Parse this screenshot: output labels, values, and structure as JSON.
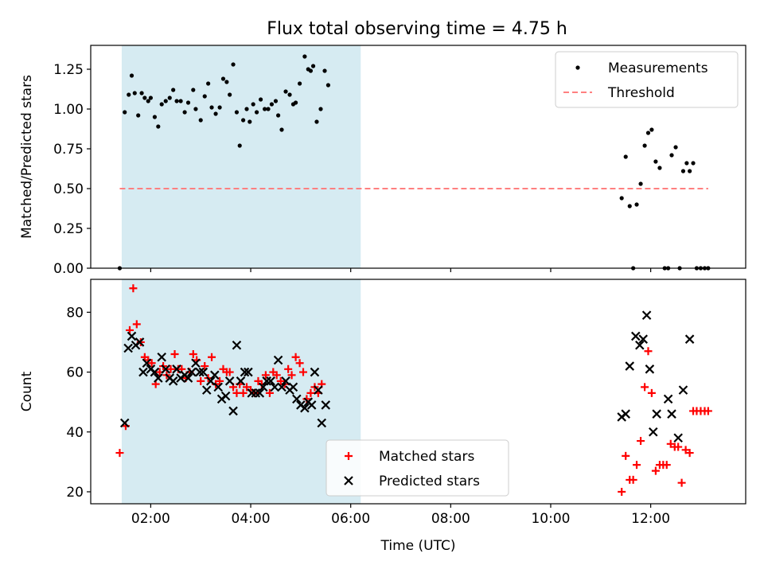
{
  "figure": {
    "title": "Flux total observing time = 4.75 h"
  },
  "chart_data": [
    {
      "type": "scatter",
      "panel": "top",
      "title": "Flux total observing time = 4.75 h",
      "xlabel": "",
      "ylabel": "Matched/Predicted stars",
      "xlim": [
        0.8,
        13.9
      ],
      "ylim": [
        0,
        1.4
      ],
      "yticks": [
        0.0,
        0.25,
        0.5,
        0.75,
        1.0,
        1.25
      ],
      "ytick_labels": [
        "0.00",
        "0.25",
        "0.50",
        "0.75",
        "1.00",
        "1.25"
      ],
      "xticks": [
        2,
        4,
        6,
        8,
        10,
        12
      ],
      "shaded_span": {
        "x": [
          1.42,
          6.2
        ],
        "color": "#add8e6"
      },
      "legend": {
        "position": "top-right"
      },
      "series": [
        {
          "name": "Measurements",
          "kind": "dot",
          "color": "#000000",
          "points": [
            [
              1.38,
              0.0
            ],
            [
              1.48,
              0.98
            ],
            [
              1.56,
              1.09
            ],
            [
              1.62,
              1.21
            ],
            [
              1.68,
              1.1
            ],
            [
              1.75,
              0.96
            ],
            [
              1.82,
              1.1
            ],
            [
              1.88,
              1.07
            ],
            [
              1.95,
              1.05
            ],
            [
              2.0,
              1.07
            ],
            [
              2.08,
              0.95
            ],
            [
              2.15,
              0.89
            ],
            [
              2.22,
              1.03
            ],
            [
              2.3,
              1.05
            ],
            [
              2.38,
              1.07
            ],
            [
              2.45,
              1.12
            ],
            [
              2.52,
              1.05
            ],
            [
              2.6,
              1.05
            ],
            [
              2.68,
              0.98
            ],
            [
              2.75,
              1.04
            ],
            [
              2.85,
              1.12
            ],
            [
              2.9,
              1.0
            ],
            [
              3.0,
              0.93
            ],
            [
              3.08,
              1.08
            ],
            [
              3.15,
              1.16
            ],
            [
              3.22,
              1.01
            ],
            [
              3.3,
              0.97
            ],
            [
              3.38,
              1.01
            ],
            [
              3.45,
              1.19
            ],
            [
              3.52,
              1.17
            ],
            [
              3.58,
              1.09
            ],
            [
              3.65,
              1.28
            ],
            [
              3.72,
              0.98
            ],
            [
              3.78,
              0.77
            ],
            [
              3.85,
              0.93
            ],
            [
              3.92,
              1.0
            ],
            [
              3.98,
              0.92
            ],
            [
              4.05,
              1.03
            ],
            [
              4.12,
              0.98
            ],
            [
              4.2,
              1.06
            ],
            [
              4.28,
              1.0
            ],
            [
              4.35,
              1.0
            ],
            [
              4.42,
              1.03
            ],
            [
              4.5,
              1.05
            ],
            [
              4.55,
              0.96
            ],
            [
              4.62,
              0.87
            ],
            [
              4.7,
              1.11
            ],
            [
              4.78,
              1.09
            ],
            [
              4.85,
              1.03
            ],
            [
              4.9,
              1.04
            ],
            [
              4.98,
              1.16
            ],
            [
              5.08,
              1.33
            ],
            [
              5.15,
              1.25
            ],
            [
              5.2,
              1.24
            ],
            [
              5.25,
              1.27
            ],
            [
              5.32,
              0.92
            ],
            [
              5.4,
              1.0
            ],
            [
              5.48,
              1.24
            ],
            [
              5.55,
              1.15
            ],
            [
              11.42,
              0.44
            ],
            [
              11.5,
              0.7
            ],
            [
              11.58,
              0.39
            ],
            [
              11.65,
              0.0
            ],
            [
              11.72,
              0.4
            ],
            [
              11.8,
              0.53
            ],
            [
              11.88,
              0.77
            ],
            [
              11.95,
              0.85
            ],
            [
              12.02,
              0.87
            ],
            [
              12.1,
              0.67
            ],
            [
              12.18,
              0.63
            ],
            [
              12.28,
              0.0
            ],
            [
              12.35,
              0.0
            ],
            [
              12.42,
              0.71
            ],
            [
              12.5,
              0.76
            ],
            [
              12.58,
              0.0
            ],
            [
              12.65,
              0.61
            ],
            [
              12.72,
              0.66
            ],
            [
              12.78,
              0.61
            ],
            [
              12.85,
              0.66
            ],
            [
              12.92,
              0.0
            ],
            [
              13.0,
              0.0
            ],
            [
              13.08,
              0.0
            ],
            [
              13.15,
              0.0
            ]
          ]
        },
        {
          "name": "Threshold",
          "kind": "dashed-line",
          "color": "#ff8080",
          "points": [
            [
              1.38,
              0.5
            ],
            [
              13.15,
              0.5
            ]
          ]
        }
      ]
    },
    {
      "type": "scatter",
      "panel": "bottom",
      "xlabel": "Time (UTC)",
      "ylabel": "Count",
      "xlim": [
        0.8,
        13.9
      ],
      "ylim": [
        16,
        91
      ],
      "yticks": [
        20,
        40,
        60,
        80
      ],
      "ytick_labels": [
        "20",
        "40",
        "60",
        "80"
      ],
      "xticks": [
        2,
        4,
        6,
        8,
        10,
        12
      ],
      "xtick_labels": [
        "02:00",
        "04:00",
        "06:00",
        "08:00",
        "10:00",
        "12:00"
      ],
      "shaded_span": {
        "x": [
          1.42,
          6.2
        ],
        "color": "#add8e6"
      },
      "legend": {
        "position": "bottom-center"
      },
      "series": [
        {
          "name": "Matched stars",
          "kind": "plus",
          "color": "#ff0000",
          "points": [
            [
              1.38,
              33
            ],
            [
              1.5,
              42
            ],
            [
              1.58,
              74
            ],
            [
              1.65,
              88
            ],
            [
              1.72,
              76
            ],
            [
              1.8,
              70
            ],
            [
              1.88,
              65
            ],
            [
              1.95,
              64
            ],
            [
              2.02,
              63
            ],
            [
              2.1,
              56
            ],
            [
              2.18,
              60
            ],
            [
              2.25,
              62
            ],
            [
              2.32,
              59
            ],
            [
              2.4,
              61
            ],
            [
              2.48,
              66
            ],
            [
              2.55,
              61
            ],
            [
              2.62,
              61
            ],
            [
              2.7,
              58
            ],
            [
              2.78,
              60
            ],
            [
              2.85,
              66
            ],
            [
              2.92,
              64
            ],
            [
              3.0,
              57
            ],
            [
              3.08,
              62
            ],
            [
              3.15,
              58
            ],
            [
              3.22,
              65
            ],
            [
              3.3,
              56
            ],
            [
              3.38,
              57
            ],
            [
              3.45,
              61
            ],
            [
              3.52,
              60
            ],
            [
              3.58,
              60
            ],
            [
              3.65,
              55
            ],
            [
              3.72,
              53
            ],
            [
              3.78,
              56
            ],
            [
              3.85,
              53
            ],
            [
              3.92,
              55
            ],
            [
              4.0,
              54
            ],
            [
              4.08,
              53
            ],
            [
              4.15,
              57
            ],
            [
              4.22,
              56
            ],
            [
              4.3,
              59
            ],
            [
              4.38,
              53
            ],
            [
              4.45,
              60
            ],
            [
              4.52,
              59
            ],
            [
              4.6,
              57
            ],
            [
              4.68,
              56
            ],
            [
              4.75,
              61
            ],
            [
              4.82,
              59
            ],
            [
              4.9,
              65
            ],
            [
              4.98,
              63
            ],
            [
              5.05,
              60
            ],
            [
              5.12,
              51
            ],
            [
              5.2,
              53
            ],
            [
              5.28,
              55
            ],
            [
              5.35,
              53
            ],
            [
              5.42,
              56
            ],
            [
              11.42,
              20
            ],
            [
              11.5,
              32
            ],
            [
              11.58,
              24
            ],
            [
              11.65,
              24
            ],
            [
              11.72,
              29
            ],
            [
              11.8,
              37
            ],
            [
              11.88,
              55
            ],
            [
              11.95,
              67
            ],
            [
              12.02,
              53
            ],
            [
              12.1,
              27
            ],
            [
              12.18,
              29
            ],
            [
              12.25,
              29
            ],
            [
              12.32,
              29
            ],
            [
              12.4,
              36
            ],
            [
              12.48,
              35
            ],
            [
              12.55,
              35
            ],
            [
              12.62,
              23
            ],
            [
              12.7,
              34
            ],
            [
              12.78,
              33
            ],
            [
              12.85,
              47
            ],
            [
              12.92,
              47
            ],
            [
              13.0,
              47
            ],
            [
              13.08,
              47
            ],
            [
              13.15,
              47
            ]
          ]
        },
        {
          "name": "Predicted stars",
          "kind": "x",
          "color": "#000000",
          "points": [
            [
              1.48,
              43
            ],
            [
              1.55,
              68
            ],
            [
              1.62,
              72
            ],
            [
              1.7,
              69
            ],
            [
              1.78,
              70
            ],
            [
              1.85,
              60
            ],
            [
              1.92,
              63
            ],
            [
              2.0,
              61
            ],
            [
              2.08,
              60
            ],
            [
              2.15,
              58
            ],
            [
              2.22,
              65
            ],
            [
              2.3,
              61
            ],
            [
              2.38,
              58
            ],
            [
              2.45,
              57
            ],
            [
              2.52,
              61
            ],
            [
              2.6,
              58
            ],
            [
              2.68,
              59
            ],
            [
              2.75,
              58
            ],
            [
              2.82,
              60
            ],
            [
              2.9,
              63
            ],
            [
              2.98,
              60
            ],
            [
              3.05,
              60
            ],
            [
              3.12,
              54
            ],
            [
              3.2,
              57
            ],
            [
              3.28,
              59
            ],
            [
              3.35,
              55
            ],
            [
              3.42,
              51
            ],
            [
              3.5,
              52
            ],
            [
              3.58,
              57
            ],
            [
              3.65,
              47
            ],
            [
              3.72,
              69
            ],
            [
              3.8,
              57
            ],
            [
              3.88,
              60
            ],
            [
              3.95,
              60
            ],
            [
              4.02,
              53
            ],
            [
              4.1,
              53
            ],
            [
              4.18,
              53
            ],
            [
              4.25,
              55
            ],
            [
              4.32,
              57
            ],
            [
              4.4,
              57
            ],
            [
              4.48,
              55
            ],
            [
              4.55,
              64
            ],
            [
              4.62,
              55
            ],
            [
              4.7,
              57
            ],
            [
              4.78,
              54
            ],
            [
              4.85,
              55
            ],
            [
              4.92,
              51
            ],
            [
              5.0,
              49
            ],
            [
              5.08,
              48
            ],
            [
              5.15,
              50
            ],
            [
              5.22,
              49
            ],
            [
              5.28,
              60
            ],
            [
              5.35,
              54
            ],
            [
              5.42,
              43
            ],
            [
              5.5,
              49
            ],
            [
              11.42,
              45
            ],
            [
              11.5,
              46
            ],
            [
              11.58,
              62
            ],
            [
              11.7,
              72
            ],
            [
              11.78,
              69
            ],
            [
              11.85,
              71
            ],
            [
              11.92,
              79
            ],
            [
              11.98,
              61
            ],
            [
              12.05,
              40
            ],
            [
              12.12,
              46
            ],
            [
              12.35,
              51
            ],
            [
              12.42,
              46
            ],
            [
              12.55,
              38
            ],
            [
              12.65,
              54
            ],
            [
              12.78,
              71
            ]
          ]
        }
      ]
    }
  ]
}
